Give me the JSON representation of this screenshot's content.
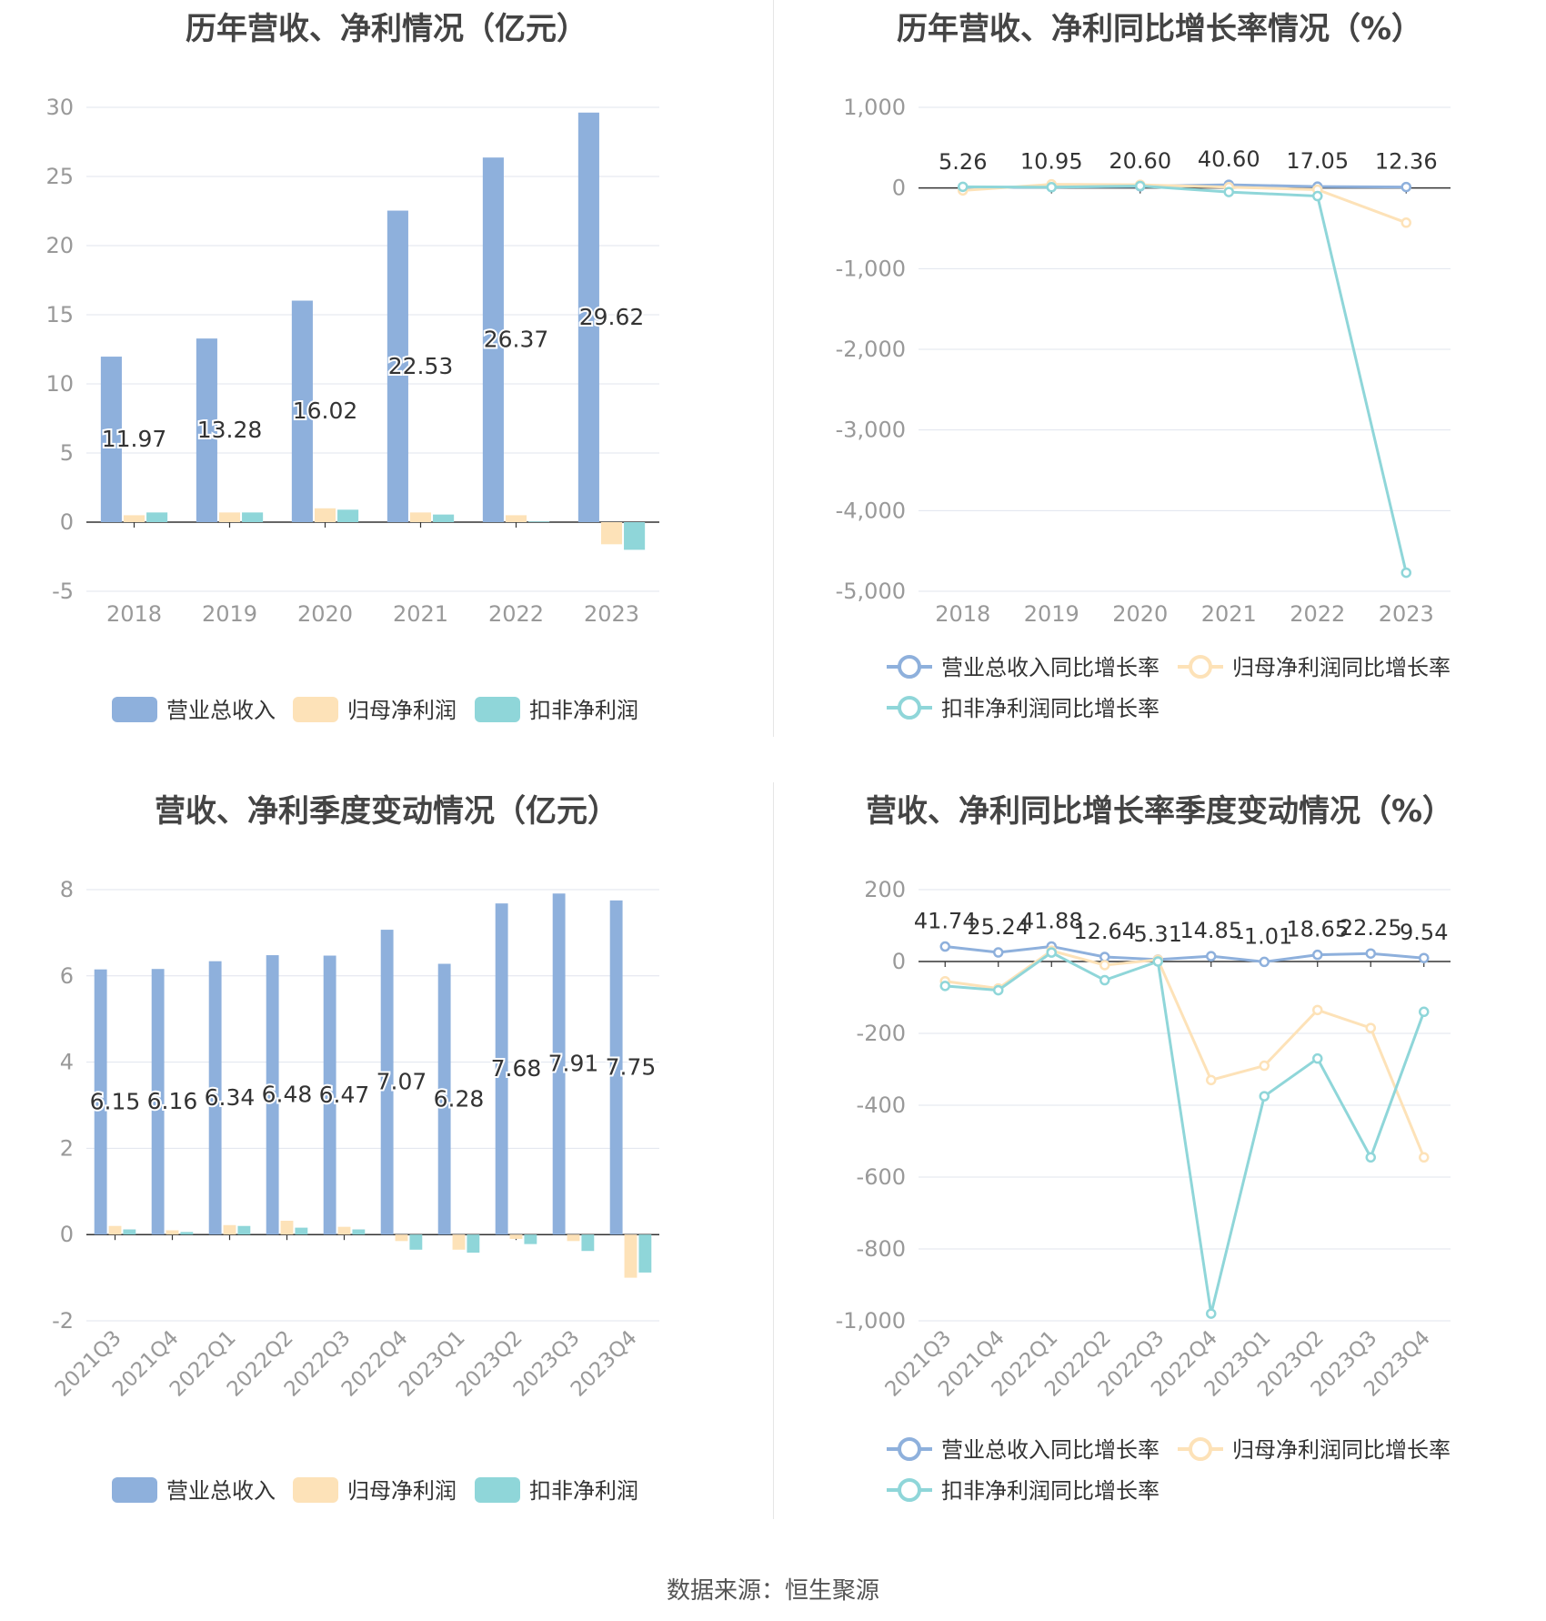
{
  "source_label": "数据来源：恒生聚源",
  "colors": {
    "revenue": "#8eb0dc",
    "net_profit": "#fde2b8",
    "deducted_profit": "#8fd6d9",
    "grid": "#e0e4ee",
    "axis": "#333333",
    "tick": "#999999"
  },
  "chart_data": [
    {
      "type": "bar",
      "title": "历年营收、净利情况（亿元）",
      "categories": [
        "2018",
        "2019",
        "2020",
        "2021",
        "2022",
        "2023"
      ],
      "ylim": [
        -5,
        30
      ],
      "yticks": [
        -5,
        0,
        5,
        10,
        15,
        20,
        25,
        30
      ],
      "ytick_labels": [
        "-5",
        "0",
        "5",
        "10",
        "15",
        "20",
        "25",
        "30"
      ],
      "grid": true,
      "legend_position": "bottom",
      "labeled_series": 0,
      "series": [
        {
          "name": "营业总收入",
          "values": [
            11.97,
            13.28,
            16.02,
            22.53,
            26.37,
            29.62
          ],
          "labels": [
            "11.97",
            "13.28",
            "16.02",
            "22.53",
            "26.37",
            "29.62"
          ]
        },
        {
          "name": "归母净利润",
          "values": [
            0.5,
            0.7,
            1.0,
            0.7,
            0.5,
            -1.6
          ]
        },
        {
          "name": "扣非净利润",
          "values": [
            0.7,
            0.7,
            0.9,
            0.55,
            0.05,
            -2.0
          ]
        }
      ]
    },
    {
      "type": "line",
      "title": "历年营收、净利同比增长率情况（%）",
      "categories": [
        "2018",
        "2019",
        "2020",
        "2021",
        "2022",
        "2023"
      ],
      "ylim": [
        -5000,
        1000
      ],
      "yticks": [
        -5000,
        -4000,
        -3000,
        -2000,
        -1000,
        0,
        1000
      ],
      "ytick_labels": [
        "-5,000",
        "-4,000",
        "-3,000",
        "-2,000",
        "-1,000",
        "0",
        "1,000"
      ],
      "grid": true,
      "legend_position": "bottom",
      "labeled_series": 0,
      "series": [
        {
          "name": "营业总收入同比增长率",
          "values": [
            5.26,
            10.95,
            20.6,
            40.6,
            17.05,
            12.36
          ],
          "labels": [
            "5.26",
            "10.95",
            "20.60",
            "40.60",
            "17.05",
            "12.36"
          ]
        },
        {
          "name": "归母净利润同比增长率",
          "values": [
            -30,
            45,
            40,
            10,
            -20,
            -430
          ]
        },
        {
          "name": "扣非净利润同比增长率",
          "values": [
            15,
            10,
            25,
            -50,
            -100,
            -4770
          ]
        }
      ]
    },
    {
      "type": "bar",
      "title": "营收、净利季度变动情况（亿元）",
      "categories": [
        "2021Q3",
        "2021Q4",
        "2022Q1",
        "2022Q2",
        "2022Q3",
        "2022Q4",
        "2023Q1",
        "2023Q2",
        "2023Q3",
        "2023Q4"
      ],
      "ylim": [
        -2,
        8
      ],
      "yticks": [
        -2,
        0,
        2,
        4,
        6,
        8
      ],
      "ytick_labels": [
        "-2",
        "0",
        "2",
        "4",
        "6",
        "8"
      ],
      "grid": true,
      "legend_position": "bottom",
      "labeled_series": 0,
      "series": [
        {
          "name": "营业总收入",
          "values": [
            6.15,
            6.16,
            6.34,
            6.48,
            6.47,
            7.07,
            6.28,
            7.68,
            7.91,
            7.75
          ],
          "labels": [
            "6.15",
            "6.16",
            "6.34",
            "6.48",
            "6.47",
            "7.07",
            "6.28",
            "7.68",
            "7.91",
            "7.75"
          ]
        },
        {
          "name": "归母净利润",
          "values": [
            0.2,
            0.1,
            0.22,
            0.32,
            0.18,
            -0.15,
            -0.35,
            -0.1,
            -0.15,
            -1.0
          ]
        },
        {
          "name": "扣非净利润",
          "values": [
            0.12,
            0.06,
            0.2,
            0.16,
            0.12,
            -0.35,
            -0.42,
            -0.22,
            -0.38,
            -0.88
          ]
        }
      ]
    },
    {
      "type": "line",
      "title": "营收、净利同比增长率季度变动情况（%）",
      "categories": [
        "2021Q3",
        "2021Q4",
        "2022Q1",
        "2022Q2",
        "2022Q3",
        "2022Q4",
        "2023Q1",
        "2023Q2",
        "2023Q3",
        "2023Q4"
      ],
      "ylim": [
        -1000,
        200
      ],
      "yticks": [
        -1000,
        -800,
        -600,
        -400,
        -200,
        0,
        200
      ],
      "ytick_labels": [
        "-1,000",
        "-800",
        "-600",
        "-400",
        "-200",
        "0",
        "200"
      ],
      "grid": true,
      "legend_position": "bottom",
      "labeled_series": 0,
      "series": [
        {
          "name": "营业总收入同比增长率",
          "values": [
            41.74,
            25.24,
            41.88,
            12.64,
            5.31,
            14.85,
            -1.01,
            18.65,
            22.25,
            9.54
          ],
          "labels": [
            "41.74",
            "25.24",
            "41.88",
            "12.64",
            "5.31",
            "14.85",
            "-1.01",
            "18.65",
            "22.25",
            "9.54"
          ]
        },
        {
          "name": "归母净利润同比增长率",
          "values": [
            -55,
            -75,
            30,
            -10,
            5,
            -330,
            -290,
            -135,
            -185,
            -545
          ]
        },
        {
          "name": "扣非净利润同比增长率",
          "values": [
            -68,
            -80,
            25,
            -52,
            0,
            -980,
            -375,
            -270,
            -545,
            -140
          ]
        }
      ]
    }
  ]
}
